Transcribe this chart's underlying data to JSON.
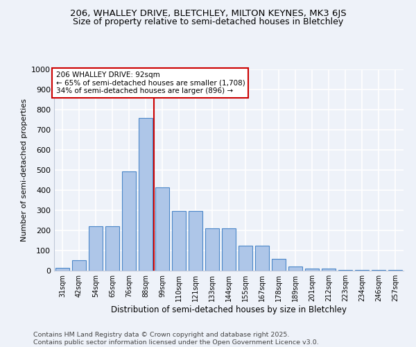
{
  "title_line1": "206, WHALLEY DRIVE, BLETCHLEY, MILTON KEYNES, MK3 6JS",
  "title_line2": "Size of property relative to semi-detached houses in Bletchley",
  "xlabel": "Distribution of semi-detached houses by size in Bletchley",
  "ylabel": "Number of semi-detached properties",
  "categories": [
    "31sqm",
    "42sqm",
    "54sqm",
    "65sqm",
    "76sqm",
    "88sqm",
    "99sqm",
    "110sqm",
    "121sqm",
    "133sqm",
    "144sqm",
    "155sqm",
    "167sqm",
    "178sqm",
    "189sqm",
    "201sqm",
    "212sqm",
    "223sqm",
    "234sqm",
    "246sqm",
    "257sqm"
  ],
  "values": [
    15,
    52,
    220,
    220,
    493,
    760,
    415,
    298,
    298,
    210,
    210,
    125,
    125,
    57,
    20,
    12,
    12,
    5,
    5,
    5,
    5
  ],
  "bar_color": "#aec6e8",
  "bar_edge_color": "#4a86c8",
  "vline_color": "#cc0000",
  "vline_pos": 6.0,
  "annotation_text": "206 WHALLEY DRIVE: 92sqm\n← 65% of semi-detached houses are smaller (1,708)\n34% of semi-detached houses are larger (896) →",
  "annotation_box_color": "#ffffff",
  "annotation_box_edge_color": "#cc0000",
  "footer_text": "Contains HM Land Registry data © Crown copyright and database right 2025.\nContains public sector information licensed under the Open Government Licence v3.0.",
  "ylim": [
    0,
    1000
  ],
  "yticks": [
    0,
    100,
    200,
    300,
    400,
    500,
    600,
    700,
    800,
    900,
    1000
  ],
  "bg_color": "#eef2f9",
  "grid_color": "#ffffff",
  "title_fontsize": 9.5,
  "subtitle_fontsize": 9.0,
  "footer_fontsize": 6.8
}
